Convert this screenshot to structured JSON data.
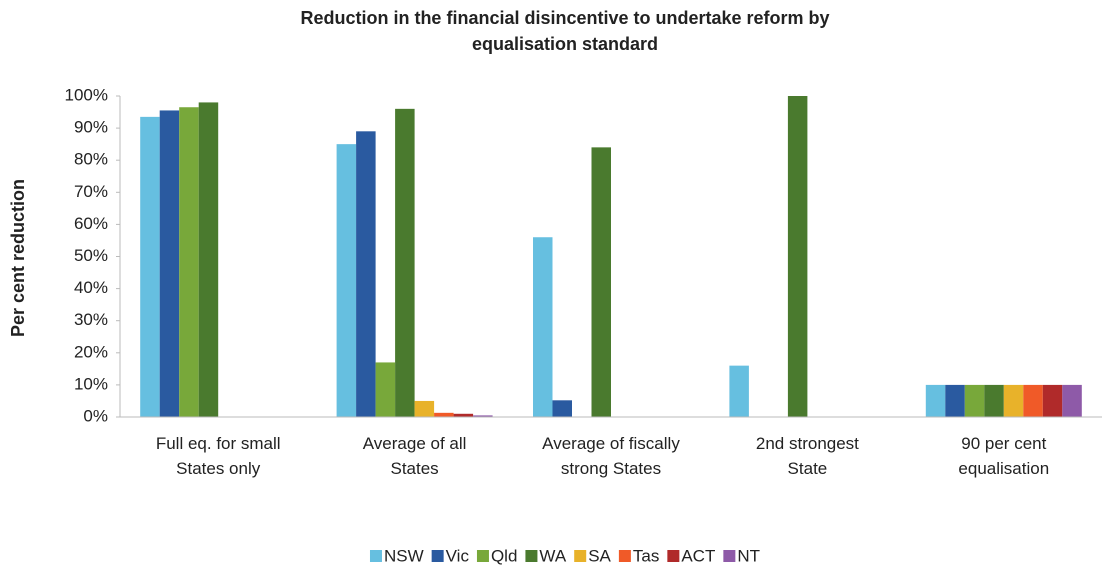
{
  "chart_data": {
    "type": "bar",
    "title": "Reduction in the financial disincentive to undertake reform by\nequalisation standard",
    "y_label": "Per cent reduction",
    "categories": [
      "Full eq. for small\nStates only",
      "Average of all\nStates",
      "Average of fiscally\nstrong States",
      "2nd strongest\nState",
      "90 per cent\nequalisation"
    ],
    "series": [
      {
        "name": "NSW",
        "color": "#66bfe0",
        "values": [
          93.5,
          85,
          56,
          16,
          10
        ]
      },
      {
        "name": "Vic",
        "color": "#2a5aa0",
        "values": [
          95.5,
          89,
          5.2,
          0,
          10
        ]
      },
      {
        "name": "Qld",
        "color": "#78a83a",
        "values": [
          96.5,
          17,
          0,
          0,
          10
        ]
      },
      {
        "name": "WA",
        "color": "#4a7a2e",
        "values": [
          98,
          96,
          84,
          100,
          10
        ]
      },
      {
        "name": "SA",
        "color": "#e8b22a",
        "values": [
          0,
          5,
          0,
          0,
          10
        ]
      },
      {
        "name": "Tas",
        "color": "#f05a28",
        "values": [
          0,
          1.3,
          0,
          0,
          10
        ]
      },
      {
        "name": "ACT",
        "color": "#b02a2a",
        "values": [
          0,
          1,
          0,
          0,
          10
        ]
      },
      {
        "name": "NT",
        "color": "#8e5aa8",
        "values": [
          0,
          0.5,
          0,
          0,
          10
        ]
      }
    ],
    "ylim": [
      0,
      100
    ],
    "yticks": [
      {
        "value": 0,
        "label": "0%"
      },
      {
        "value": 10,
        "label": "10%"
      },
      {
        "value": 20,
        "label": "20%"
      },
      {
        "value": 30,
        "label": "30%"
      },
      {
        "value": 40,
        "label": "40%"
      },
      {
        "value": 50,
        "label": "50%"
      },
      {
        "value": 60,
        "label": "60%"
      },
      {
        "value": 70,
        "label": "70%"
      },
      {
        "value": 80,
        "label": "80%"
      },
      {
        "value": 90,
        "label": "90%"
      },
      {
        "value": 100,
        "label": "100%"
      }
    ],
    "grid": false,
    "legend": "bottom"
  }
}
